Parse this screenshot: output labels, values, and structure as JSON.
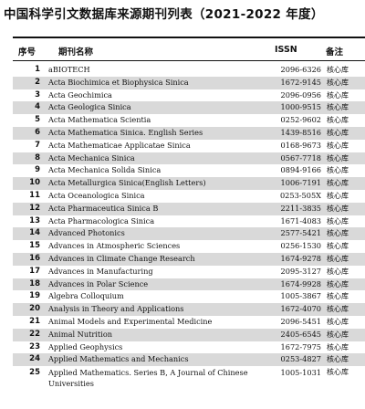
{
  "title": "中国科学引文数据库来源期刊列表（2021-2022 年度）",
  "headers": {
    "no": "序号",
    "name": "期刊名称",
    "issn": "ISSN",
    "note": "备注"
  },
  "rows": [
    {
      "no": "1",
      "name": "aBIOTECH",
      "issn": "2096-6326",
      "note": "核心库"
    },
    {
      "no": "2",
      "name": "Acta Biochimica et Biophysica Sinica",
      "issn": "1672-9145",
      "note": "核心库"
    },
    {
      "no": "3",
      "name": "Acta Geochimica",
      "issn": "2096-0956",
      "note": "核心库"
    },
    {
      "no": "4",
      "name": "Acta Geologica Sinica",
      "issn": "1000-9515",
      "note": "核心库"
    },
    {
      "no": "5",
      "name": "Acta Mathematica Scientia",
      "issn": "0252-9602",
      "note": "核心库"
    },
    {
      "no": "6",
      "name": "Acta Mathematica Sinica. English Series",
      "issn": "1439-8516",
      "note": "核心库"
    },
    {
      "no": "7",
      "name": "Acta Mathematicae Applicatae Sinica",
      "issn": "0168-9673",
      "note": "核心库"
    },
    {
      "no": "8",
      "name": "Acta Mechanica Sinica",
      "issn": "0567-7718",
      "note": "核心库"
    },
    {
      "no": "9",
      "name": "Acta Mechanica Solida Sinica",
      "issn": "0894-9166",
      "note": "核心库"
    },
    {
      "no": "10",
      "name": "Acta Metallurgica Sinica(English Letters)",
      "issn": "1006-7191",
      "note": "核心库"
    },
    {
      "no": "11",
      "name": "Acta Oceanologica Sinica",
      "issn": "0253-505X",
      "note": "核心库"
    },
    {
      "no": "12",
      "name": "Acta Pharmaceutica Sinica B",
      "issn": "2211-3835",
      "note": "核心库"
    },
    {
      "no": "13",
      "name": "Acta Pharmacologica Sinica",
      "issn": "1671-4083",
      "note": "核心库"
    },
    {
      "no": "14",
      "name": "Advanced Photonics",
      "issn": "2577-5421",
      "note": "核心库"
    },
    {
      "no": "15",
      "name": "Advances in Atmospheric Sciences",
      "issn": "0256-1530",
      "note": "核心库"
    },
    {
      "no": "16",
      "name": "Advances in Climate Change Research",
      "issn": "1674-9278",
      "note": "核心库"
    },
    {
      "no": "17",
      "name": "Advances in Manufacturing",
      "issn": "2095-3127",
      "note": "核心库"
    },
    {
      "no": "18",
      "name": "Advances in Polar Science",
      "issn": "1674-9928",
      "note": "核心库"
    },
    {
      "no": "19",
      "name": "Algebra Colloquium",
      "issn": "1005-3867",
      "note": "核心库"
    },
    {
      "no": "20",
      "name": "Analysis in Theory and Applications",
      "issn": "1672-4070",
      "note": "核心库"
    },
    {
      "no": "21",
      "name": "Animal Models and Experimental Medicine",
      "issn": "2096-5451",
      "note": "核心库"
    },
    {
      "no": "22",
      "name": "Animal Nutrition",
      "issn": "2405-6545",
      "note": "核心库"
    },
    {
      "no": "23",
      "name": "Applied Geophysics",
      "issn": "1672-7975",
      "note": "核心库"
    },
    {
      "no": "24",
      "name": "Applied Mathematics and Mechanics",
      "issn": "0253-4827",
      "note": "核心库"
    },
    {
      "no": "25",
      "name": "Applied Mathematics. Series B, A Journal of Chinese Universities",
      "issn": "1005-1031",
      "note": "核心库"
    }
  ]
}
